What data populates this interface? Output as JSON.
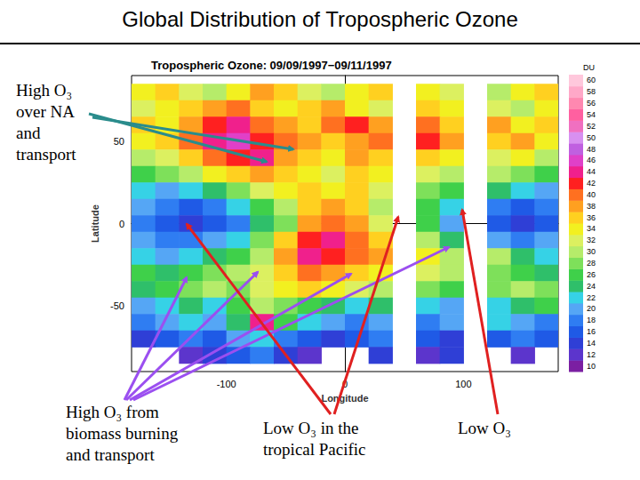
{
  "page_title": "Global Distribution of Tropospheric Ozone",
  "annotations": [
    {
      "lines": [
        "High O₃",
        "over NA",
        "and",
        "transport"
      ],
      "color": "#2a8c8c"
    },
    {
      "lines": [
        "High O₃ from",
        "biomass burning",
        "and transport"
      ],
      "color": "#9b4ff0"
    },
    {
      "lines": [
        "Low O₃ in the",
        "tropical Pacific"
      ],
      "color": "#e02020"
    },
    {
      "lines": [
        "Low O₃"
      ],
      "color": "#e02020"
    }
  ],
  "chart_data": {
    "type": "heatmap",
    "title": "Tropospheric Ozone: 09/09/1997−09/11/1997",
    "xlabel": "Longitude",
    "ylabel": "Latitude",
    "xlim": [
      -180,
      180
    ],
    "ylim": [
      -90,
      90
    ],
    "xticks": [
      -100,
      0,
      100
    ],
    "yticks": [
      -50,
      0,
      50
    ],
    "x": [
      -170,
      -150,
      -130,
      -110,
      -90,
      -70,
      -50,
      -30,
      -10,
      10,
      30,
      50,
      70,
      90,
      110,
      130,
      150,
      170
    ],
    "y": [
      80,
      70,
      60,
      50,
      40,
      30,
      20,
      10,
      0,
      -10,
      -20,
      -30,
      -40,
      -50,
      -60,
      -70,
      -80
    ],
    "values": [
      [
        34,
        36,
        32,
        30,
        34,
        38,
        36,
        32,
        30,
        34,
        36,
        null,
        34,
        32,
        null,
        30,
        34,
        36
      ],
      [
        32,
        34,
        36,
        38,
        40,
        36,
        34,
        36,
        38,
        34,
        32,
        null,
        36,
        34,
        null,
        32,
        30,
        34
      ],
      [
        36,
        34,
        38,
        42,
        44,
        40,
        38,
        36,
        40,
        42,
        38,
        null,
        40,
        36,
        null,
        38,
        34,
        36
      ],
      [
        34,
        36,
        40,
        44,
        46,
        42,
        40,
        38,
        36,
        38,
        40,
        null,
        42,
        38,
        null,
        36,
        38,
        34
      ],
      [
        30,
        32,
        36,
        40,
        42,
        44,
        38,
        36,
        34,
        38,
        36,
        null,
        36,
        34,
        null,
        32,
        34,
        30
      ],
      [
        26,
        28,
        30,
        34,
        36,
        38,
        36,
        34,
        32,
        36,
        34,
        null,
        32,
        30,
        null,
        30,
        28,
        26
      ],
      [
        22,
        20,
        22,
        24,
        28,
        32,
        34,
        36,
        34,
        36,
        32,
        null,
        28,
        26,
        null,
        24,
        22,
        20
      ],
      [
        20,
        18,
        16,
        18,
        22,
        26,
        30,
        36,
        38,
        36,
        30,
        null,
        26,
        22,
        null,
        18,
        16,
        18
      ],
      [
        18,
        16,
        14,
        16,
        18,
        24,
        28,
        38,
        40,
        38,
        32,
        null,
        26,
        20,
        null,
        16,
        14,
        16
      ],
      [
        20,
        18,
        18,
        20,
        22,
        28,
        36,
        42,
        44,
        40,
        36,
        null,
        30,
        24,
        null,
        20,
        18,
        20
      ],
      [
        22,
        20,
        22,
        24,
        26,
        30,
        38,
        44,
        42,
        40,
        38,
        null,
        34,
        30,
        null,
        30,
        24,
        22
      ],
      [
        26,
        24,
        26,
        28,
        30,
        32,
        36,
        40,
        38,
        36,
        34,
        null,
        32,
        30,
        null,
        28,
        26,
        24
      ],
      [
        24,
        26,
        28,
        30,
        28,
        32,
        34,
        36,
        34,
        32,
        30,
        null,
        28,
        26,
        null,
        28,
        30,
        28
      ],
      [
        20,
        22,
        24,
        22,
        26,
        30,
        28,
        26,
        24,
        22,
        24,
        null,
        22,
        20,
        null,
        22,
        24,
        26
      ],
      [
        18,
        20,
        22,
        20,
        24,
        44,
        26,
        22,
        20,
        18,
        20,
        null,
        18,
        20,
        null,
        22,
        20,
        18
      ],
      [
        14,
        16,
        18,
        16,
        20,
        22,
        18,
        16,
        14,
        16,
        18,
        null,
        16,
        14,
        null,
        16,
        18,
        16
      ],
      [
        null,
        null,
        12,
        14,
        16,
        18,
        14,
        12,
        null,
        null,
        14,
        null,
        12,
        14,
        null,
        null,
        12,
        null
      ]
    ],
    "colorbar": {
      "label": "DU",
      "ticks": [
        10,
        12,
        14,
        16,
        18,
        20,
        22,
        24,
        26,
        28,
        30,
        32,
        34,
        36,
        38,
        40,
        42,
        44,
        46,
        48,
        50,
        52,
        54,
        56,
        58,
        60
      ],
      "colors": [
        "#7b1fa2",
        "#5c35cc",
        "#2f3fd6",
        "#1f5ae6",
        "#2f7df2",
        "#55a6f5",
        "#36d2e6",
        "#2fbf6a",
        "#3fd04a",
        "#7ee05a",
        "#b6ec6a",
        "#dcf060",
        "#f2f020",
        "#ffd020",
        "#ffa020",
        "#ff7020",
        "#ff2020",
        "#f0208c",
        "#e040c8",
        "#c060e0",
        "#d890f0",
        "#f070c0",
        "#ff60a0",
        "#ff88b0",
        "#ffa8c8",
        "#ffc8dc"
      ]
    }
  }
}
